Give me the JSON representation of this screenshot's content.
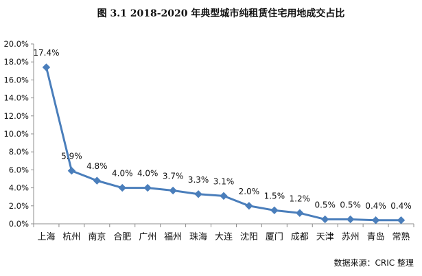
{
  "chart_data": {
    "type": "line",
    "title": "图 3.1   2018-2020 年典型城市纯租赁住宅用地成交占比",
    "categories": [
      "上海",
      "杭州",
      "南京",
      "合肥",
      "广州",
      "福州",
      "珠海",
      "大连",
      "沈阳",
      "厦门",
      "成都",
      "天津",
      "苏州",
      "青岛",
      "常熟"
    ],
    "values": [
      17.4,
      5.9,
      4.8,
      4.0,
      4.0,
      3.7,
      3.3,
      3.1,
      2.0,
      1.5,
      1.2,
      0.5,
      0.5,
      0.4,
      0.4
    ],
    "data_labels": [
      "17.4%",
      "5.9%",
      "4.8%",
      "4.0%",
      "4.0%",
      "3.7%",
      "3.3%",
      "3.1%",
      "2.0%",
      "1.5%",
      "1.2%",
      "0.5%",
      "0.5%",
      "0.4%",
      "0.4%"
    ],
    "y_ticks": [
      "0.0%",
      "2.0%",
      "4.0%",
      "6.0%",
      "8.0%",
      "10.0%",
      "12.0%",
      "14.0%",
      "16.0%",
      "18.0%",
      "20.0%"
    ],
    "ylim": [
      0,
      20
    ],
    "xlabel": "",
    "ylabel": "",
    "grid": false,
    "legend": "none",
    "series_color": "#4a7ebb",
    "marker": "diamond",
    "source_note": "数据来源：CRIC 整理"
  }
}
